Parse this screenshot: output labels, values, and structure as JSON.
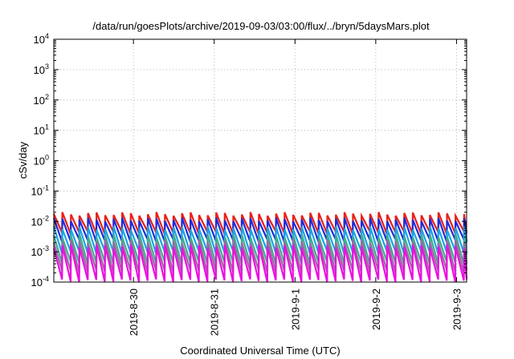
{
  "chart_data": {
    "type": "line",
    "title": "/data/run/goesPlots/archive/2019-09-03/03:00/flux/../bryn/5daysMars.plot",
    "xlabel": "Coordinated Universal Time (UTC)",
    "ylabel": "cSv/day",
    "yscale": "log",
    "ylim": [
      0.0001,
      10000
    ],
    "y_ticks": [
      {
        "base": "10",
        "exp": "-4"
      },
      {
        "base": "10",
        "exp": "-3"
      },
      {
        "base": "10",
        "exp": "-2"
      },
      {
        "base": "10",
        "exp": "-1"
      },
      {
        "base": "10",
        "exp": "0"
      },
      {
        "base": "10",
        "exp": "1"
      },
      {
        "base": "10",
        "exp": "2"
      },
      {
        "base": "10",
        "exp": "3"
      },
      {
        "base": "10",
        "exp": "4"
      }
    ],
    "x_ticks": [
      "2019-8-30",
      "2019-8-31",
      "2019-9-1",
      "2019-9-2",
      "2019-9-3"
    ],
    "xlim": [
      "2019-08-29 00:20",
      "2019-09-03 03:00"
    ],
    "grid": true,
    "sawtooth_period_hours": 2.54,
    "series": [
      {
        "color": "#e8201a",
        "peak": 0.0175,
        "trough": 0.0042
      },
      {
        "color": "#1f2bd9",
        "peak": 0.0115,
        "trough": 0.0023
      },
      {
        "color": "#1aa3e6",
        "peak": 0.006,
        "trough": 0.00095
      },
      {
        "color": "#3dae8d",
        "peak": 0.0034,
        "trough": 0.00042
      },
      {
        "color": "#9a6aa0",
        "peak": 0.0022,
        "trough": 0.00022
      },
      {
        "color": "#ea10e0",
        "peak": 0.0015,
        "trough": 0.00011
      }
    ]
  }
}
